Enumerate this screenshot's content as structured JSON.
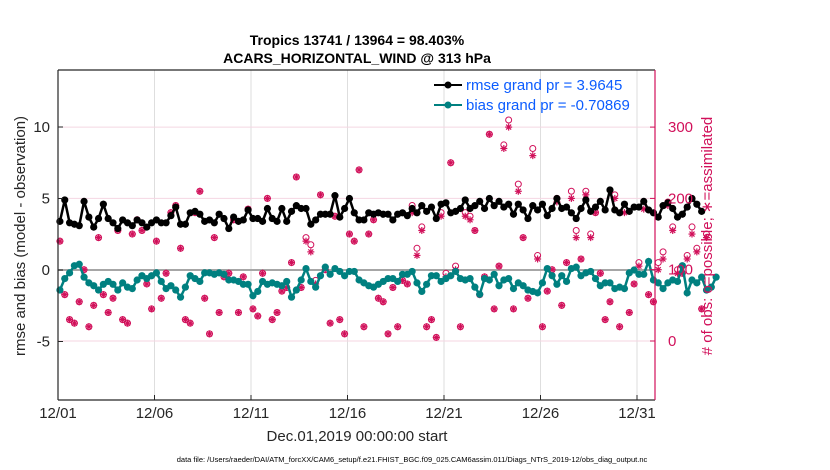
{
  "chart_data": {
    "type": "line",
    "title": [
      "Tropics 13741 / 13964 = 98.403%",
      "ACARS_HORIZONTAL_WIND @ 313 hPa"
    ],
    "xlabel": "Dec.01,2019 00:00:00 start",
    "ylabel": "rmse and bias (model - observation)",
    "ylabel_right": "# of obs: o=possible; ∗=assimilated",
    "footnote": "data file: /Users/raeder/DAI/ATM_forcXX/CAM6_setup/f.e21.FHIST_BGC.f09_025.CAM6assim.011/Diags_NTrS_2019-12/obs_diag_output.nc",
    "xlim_days": [
      0,
      31
    ],
    "ylim": [
      -9.5,
      13.5
    ],
    "ylim_right": [
      -85,
      380
    ],
    "x_ticks": [
      {
        "day": 0,
        "label": "12/01"
      },
      {
        "day": 5,
        "label": "12/06"
      },
      {
        "day": 10,
        "label": "12/11"
      },
      {
        "day": 15,
        "label": "12/16"
      },
      {
        "day": 20,
        "label": "12/21"
      },
      {
        "day": 25,
        "label": "12/26"
      },
      {
        "day": 30,
        "label": "12/31"
      }
    ],
    "y_ticks": [
      -5,
      0,
      5,
      10
    ],
    "y_ticks_right": [
      0,
      100,
      200,
      300
    ],
    "grid": true,
    "legend_position": "top-right",
    "legend": [
      {
        "label": "rmse grand pr = 3.9645",
        "color": "#000000"
      },
      {
        "label": "bias grand pr = -0.70869",
        "color": "#008080"
      }
    ],
    "colors": {
      "rmse": "#000000",
      "bias": "#008080",
      "obs": "#d1105a",
      "zero_line": "#a6a6a6"
    },
    "time_step_days": 0.25,
    "rmse": [
      3.4,
      4.9,
      3.3,
      3.2,
      3.1,
      4.8,
      3.7,
      3.0,
      3.6,
      4.6,
      3.6,
      3.3,
      2.9,
      3.5,
      3.3,
      3.1,
      3.5,
      3.3,
      3.0,
      3.3,
      3.5,
      3.3,
      3.3,
      3.8,
      4.4,
      3.2,
      3.2,
      4.0,
      4.1,
      3.9,
      3.4,
      3.5,
      3.3,
      3.9,
      3.6,
      2.9,
      3.7,
      3.4,
      3.5,
      4.2,
      3.6,
      3.6,
      3.4,
      4.3,
      3.6,
      3.4,
      4.3,
      3.4,
      4.1,
      4.5,
      4.3,
      4.3,
      3.2,
      3.5,
      3.9,
      3.9,
      3.9,
      5.2,
      3.7,
      4.3,
      5.0,
      4.0,
      3.5,
      3.5,
      4.0,
      3.9,
      4.0,
      3.9,
      3.9,
      3.5,
      3.9,
      4.0,
      3.8,
      4.3,
      4.0,
      4.5,
      4.1,
      4.4,
      3.6,
      4.6,
      4.7,
      4.0,
      4.1,
      4.3,
      4.9,
      4.3,
      4.5,
      4.8,
      4.3,
      5.0,
      4.5,
      4.8,
      4.4,
      4.6,
      3.9,
      4.6,
      4.2,
      3.6,
      4.5,
      4.2,
      4.6,
      3.8,
      4.3,
      5.0,
      4.3,
      4.4,
      4.0,
      3.6,
      4.3,
      4.9,
      4.1,
      4.4,
      4.8,
      4.2,
      5.6,
      4.2,
      4.0,
      4.6,
      4.1,
      4.4,
      4.4,
      4.8,
      4.2,
      4.0,
      3.7,
      4.5,
      4.7,
      4.3,
      3.7,
      3.9,
      4.4,
      5.0,
      4.6,
      4.1
    ],
    "bias": [
      -1.4,
      -0.6,
      -0.2,
      0.3,
      0.4,
      -0.5,
      -0.9,
      -1.1,
      -1.4,
      -1.0,
      -0.8,
      -1.0,
      -1.4,
      -0.9,
      -1.2,
      -1.3,
      -0.7,
      -0.4,
      -0.6,
      -0.4,
      -0.2,
      -0.8,
      -1.3,
      -1.1,
      -1.4,
      -1.9,
      -1.2,
      -0.4,
      -0.6,
      -0.8,
      -0.2,
      -0.2,
      -0.3,
      -0.2,
      -0.3,
      -0.7,
      -0.7,
      -0.8,
      -1.0,
      -1.0,
      -1.8,
      -1.5,
      -0.8,
      -1.0,
      -0.9,
      -1.0,
      -1.1,
      -0.8,
      -1.9,
      -1.4,
      -0.7,
      0.1,
      -0.8,
      -1.2,
      -0.4,
      0.2,
      -0.3,
      0.1,
      -0.1,
      -0.4,
      -0.1,
      -0.1,
      -0.7,
      -0.9,
      -1.1,
      -1.2,
      -1.0,
      -0.8,
      -0.6,
      -0.6,
      -0.8,
      -0.3,
      -0.3,
      -0.1,
      -0.9,
      -1.5,
      -1.0,
      -0.4,
      -0.4,
      -0.8,
      -0.6,
      -0.4,
      -0.1,
      -0.6,
      -0.7,
      -0.6,
      -1.2,
      -1.7,
      -0.6,
      -0.7,
      -0.3,
      -1.1,
      -0.7,
      -0.6,
      -1.3,
      -0.9,
      -1.1,
      -1.4,
      -1.5,
      -1.6,
      -0.9,
      0.1,
      -0.4,
      -1.0,
      -0.4,
      -0.8,
      0.1,
      0.2,
      -0.4,
      -0.2,
      -0.1,
      -0.6,
      -1.1,
      -0.9,
      -0.9,
      -1.3,
      -1.2,
      -1.3,
      -0.2,
      0.0,
      -0.3,
      -0.3,
      0.6,
      -0.7,
      -0.9,
      -1.3,
      -0.9,
      -0.7,
      -0.8,
      0.3,
      -1.6,
      -0.7,
      -0.9,
      -0.5,
      -1.4,
      -1.2,
      -0.5
    ],
    "obs_possible": [
      140,
      65,
      30,
      25,
      55,
      100,
      20,
      50,
      145,
      65,
      40,
      60,
      155,
      30,
      25,
      150,
      170,
      155,
      80,
      45,
      140,
      60,
      95,
      180,
      190,
      130,
      30,
      25,
      180,
      210,
      60,
      10,
      145,
      40,
      90,
      95,
      170,
      40,
      90,
      185,
      45,
      35,
      95,
      200,
      30,
      40,
      70,
      75,
      110,
      230,
      75,
      145,
      135,
      85,
      205,
      100,
      25,
      175,
      30,
      10,
      150,
      140,
      240,
      20,
      150,
      170,
      60,
      55,
      10,
      75,
      20,
      85,
      80,
      190,
      130,
      160,
      20,
      30,
      5,
      180,
      95,
      250,
      105,
      20,
      180,
      175,
      155,
      65,
      90,
      290,
      45,
      105,
      275,
      310,
      45,
      220,
      145,
      60,
      270,
      120,
      20,
      70,
      100,
      200,
      50,
      110,
      210,
      155,
      115,
      210,
      150,
      180,
      95,
      30,
      55,
      205,
      20,
      185,
      40,
      80,
      110,
      190,
      65,
      55,
      110,
      125,
      195,
      160,
      100,
      95,
      120,
      160,
      130,
      45,
      150
    ],
    "obs_assimilated": [
      140,
      65,
      30,
      25,
      55,
      100,
      20,
      50,
      145,
      65,
      40,
      60,
      155,
      30,
      25,
      150,
      170,
      155,
      80,
      45,
      140,
      60,
      95,
      180,
      190,
      130,
      30,
      25,
      180,
      210,
      60,
      10,
      145,
      40,
      90,
      95,
      170,
      40,
      90,
      185,
      45,
      35,
      95,
      200,
      30,
      40,
      70,
      75,
      110,
      230,
      75,
      140,
      125,
      80,
      205,
      100,
      25,
      175,
      30,
      10,
      150,
      140,
      240,
      20,
      150,
      170,
      60,
      55,
      10,
      75,
      20,
      85,
      80,
      180,
      120,
      155,
      20,
      30,
      5,
      175,
      90,
      250,
      100,
      20,
      175,
      170,
      155,
      65,
      90,
      290,
      45,
      105,
      270,
      300,
      45,
      210,
      145,
      60,
      260,
      115,
      20,
      70,
      100,
      195,
      50,
      110,
      200,
      145,
      115,
      205,
      145,
      180,
      95,
      30,
      55,
      200,
      20,
      180,
      40,
      80,
      105,
      185,
      65,
      55,
      100,
      115,
      190,
      155,
      95,
      95,
      115,
      150,
      125,
      45,
      145
    ]
  }
}
